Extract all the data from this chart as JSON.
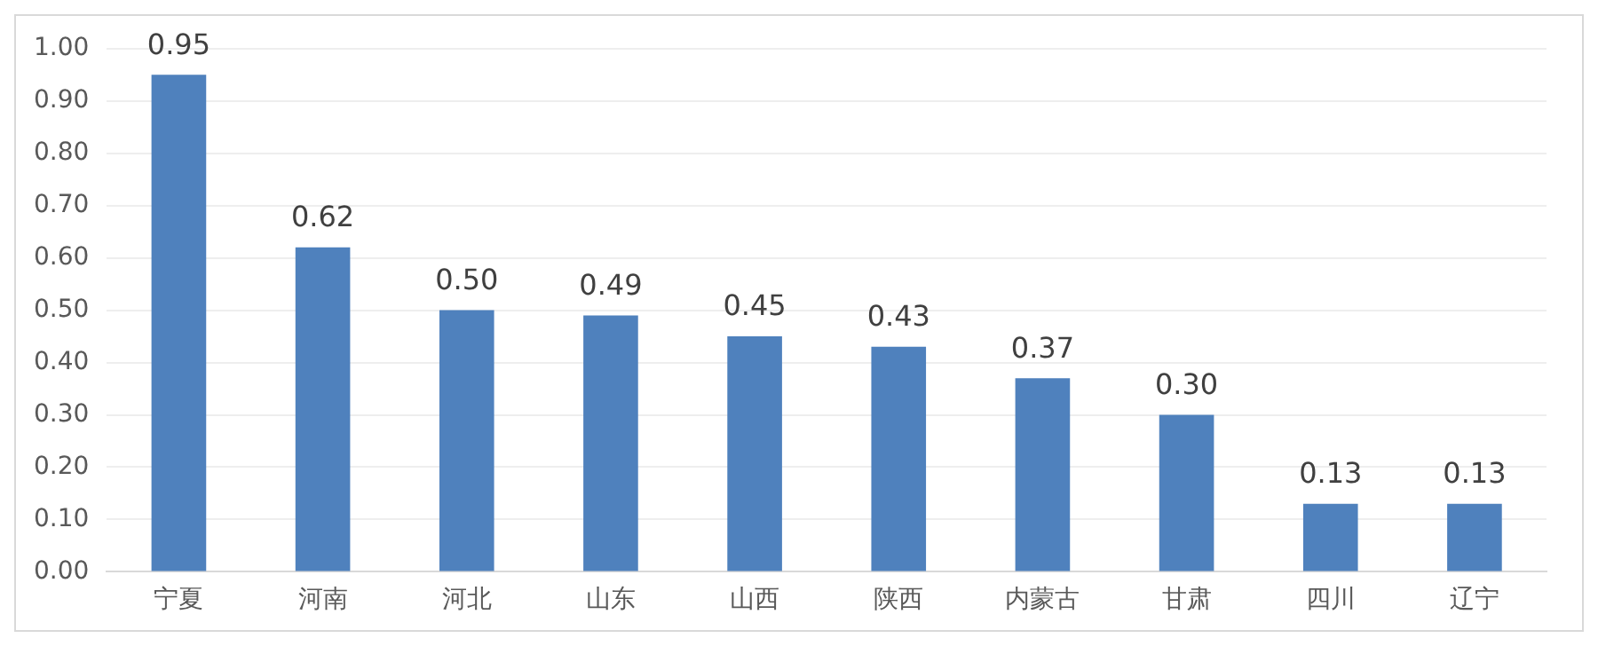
{
  "chart_data": {
    "type": "bar",
    "categories": [
      "宁夏",
      "河南",
      "河北",
      "山东",
      "山西",
      "陕西",
      "内蒙古",
      "甘肃",
      "四川",
      "辽宁"
    ],
    "values": [
      0.95,
      0.62,
      0.5,
      0.49,
      0.45,
      0.43,
      0.37,
      0.3,
      0.13,
      0.13
    ],
    "value_labels": [
      "0.95",
      "0.62",
      "0.50",
      "0.49",
      "0.45",
      "0.43",
      "0.37",
      "0.30",
      "0.13",
      "0.13"
    ],
    "color": "#4f81bd",
    "ylim": [
      0,
      1
    ],
    "yticks": [
      {
        "value": 0,
        "label": "0.00"
      },
      {
        "value": 0.1,
        "label": "0.10"
      },
      {
        "value": 0.2,
        "label": "0.20"
      },
      {
        "value": 0.3,
        "label": "0.30"
      },
      {
        "value": 0.4,
        "label": "0.40"
      },
      {
        "value": 0.5,
        "label": "0.50"
      },
      {
        "value": 0.6,
        "label": "0.60"
      },
      {
        "value": 0.7,
        "label": "0.70"
      },
      {
        "value": 0.8,
        "label": "0.80"
      },
      {
        "value": 0.9,
        "label": "0.90"
      },
      {
        "value": 1,
        "label": "1.00"
      }
    ],
    "grid": "y",
    "legend": false
  }
}
